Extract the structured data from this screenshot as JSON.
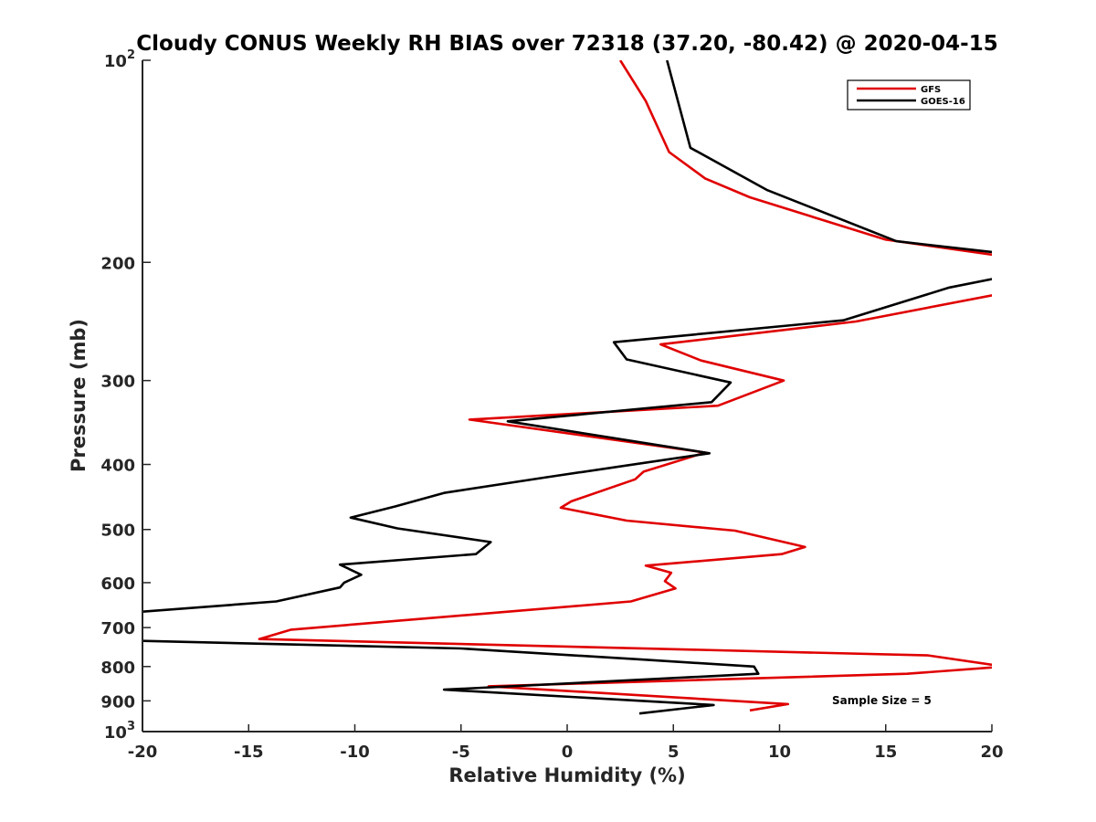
{
  "chart_data": {
    "type": "line",
    "title": "Cloudy CONUS Weekly RH BIAS over 72318 (37.20, -80.42) @ 2020-04-15",
    "xlabel": "Relative Humidity (%)",
    "ylabel": "Pressure (mb)",
    "xlim": [
      -20,
      20
    ],
    "ylim": [
      100,
      1000
    ],
    "y_scale": "log",
    "y_reversed": true,
    "grid": false,
    "x_ticks": [
      -20,
      -15,
      -10,
      -5,
      0,
      5,
      10,
      15,
      20
    ],
    "x_tick_labels": [
      "-20",
      "-15",
      "-10",
      "-5",
      "0",
      "5",
      "10",
      "15",
      "20"
    ],
    "y_ticks": [
      100,
      200,
      300,
      400,
      500,
      600,
      700,
      800,
      900,
      1000
    ],
    "y_tick_labels": [
      {
        "base": "10",
        "exp": "2"
      },
      {
        "base": "200",
        "exp": ""
      },
      {
        "base": "300",
        "exp": ""
      },
      {
        "base": "400",
        "exp": ""
      },
      {
        "base": "500",
        "exp": ""
      },
      {
        "base": "600",
        "exp": ""
      },
      {
        "base": "700",
        "exp": ""
      },
      {
        "base": "800",
        "exp": ""
      },
      {
        "base": "900",
        "exp": ""
      },
      {
        "base": "10",
        "exp": "3"
      }
    ],
    "legend": {
      "position": "top-right",
      "entries": [
        "GFS",
        "GOES-16"
      ]
    },
    "annotation": "Sample Size = 5",
    "series": [
      {
        "name": "GFS",
        "color": "#e00000",
        "points": [
          [
            2.5,
            100
          ],
          [
            3.7,
            115
          ],
          [
            4.8,
            137
          ],
          [
            6.5,
            150
          ],
          [
            8.6,
            160
          ],
          [
            15,
            185
          ],
          [
            20.6,
            196
          ],
          [
            null,
            null
          ],
          [
            20.6,
            220
          ],
          [
            20,
            224
          ],
          [
            13.6,
            245
          ],
          [
            4.4,
            265
          ],
          [
            6.3,
            280
          ],
          [
            10.2,
            300
          ],
          [
            7.1,
            327
          ],
          [
            -4.6,
            343
          ],
          [
            6.5,
            384
          ],
          [
            3.6,
            410
          ],
          [
            3.2,
            421
          ],
          [
            0.2,
            454
          ],
          [
            -0.3,
            464
          ],
          [
            2.8,
            485
          ],
          [
            7.9,
            502
          ],
          [
            11.2,
            531
          ],
          [
            10.1,
            544
          ],
          [
            3.7,
            566
          ],
          [
            4.9,
            580
          ],
          [
            4.6,
            597
          ],
          [
            5.1,
            612
          ],
          [
            3.0,
            640
          ],
          [
            -13,
            705
          ],
          [
            -14.5,
            728
          ],
          [
            17,
            770
          ],
          [
            20.6,
            800
          ],
          [
            16,
            820
          ],
          [
            -3.7,
            856
          ],
          [
            10.4,
            910
          ],
          [
            8.6,
            930
          ]
        ]
      },
      {
        "name": "GOES-16",
        "color": "#000000",
        "points": [
          [
            4.7,
            100
          ],
          [
            5.8,
            135
          ],
          [
            9.4,
            156
          ],
          [
            15.5,
            186
          ],
          [
            20.6,
            194
          ],
          [
            null,
            null
          ],
          [
            20.6,
            210
          ],
          [
            18,
            218
          ],
          [
            13,
            244
          ],
          [
            2.2,
            263
          ],
          [
            2.8,
            279
          ],
          [
            7.7,
            302
          ],
          [
            6.8,
            323
          ],
          [
            -2.8,
            345
          ],
          [
            6.7,
            385
          ],
          [
            -1,
            418
          ],
          [
            -5.8,
            441
          ],
          [
            -8.1,
            462
          ],
          [
            -10.2,
            480
          ],
          [
            -8.0,
            498
          ],
          [
            -3.6,
            522
          ],
          [
            -4.3,
            544
          ],
          [
            -10.7,
            564
          ],
          [
            -9.7,
            584
          ],
          [
            -10.5,
            600
          ],
          [
            -10.7,
            610
          ],
          [
            -13.7,
            640
          ],
          [
            -20.6,
            665
          ],
          [
            null,
            null
          ],
          [
            -20.6,
            732
          ],
          [
            -5,
            752
          ],
          [
            3.5,
            781
          ],
          [
            8.8,
            800
          ],
          [
            9.0,
            820
          ],
          [
            -5.8,
            866
          ],
          [
            6.9,
            913
          ],
          [
            3.4,
            940
          ]
        ]
      }
    ]
  }
}
